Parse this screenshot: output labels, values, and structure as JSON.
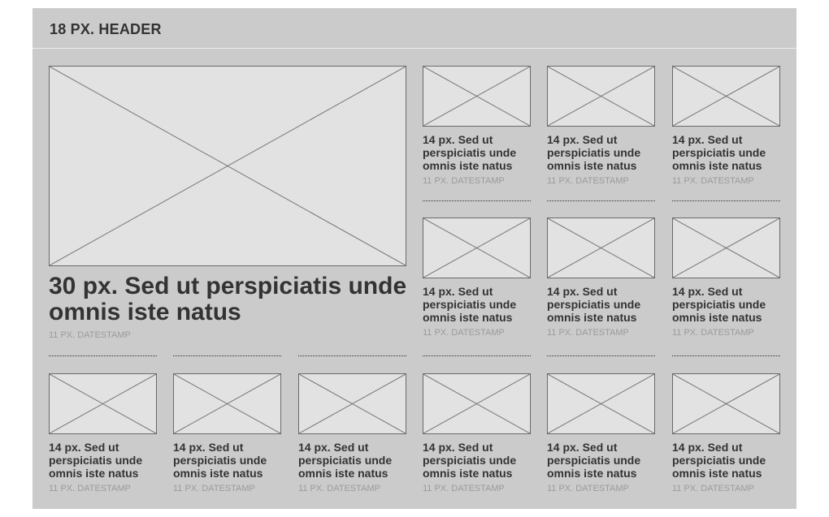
{
  "header": {
    "title": "18 PX. HEADER"
  },
  "hero": {
    "image_icon": "image-placeholder-icon",
    "title": "30 px. Sed ut perspiciatis unde omnis iste natus",
    "datestamp": "11 PX. DATESTAMP"
  },
  "grid_right": [
    {
      "title": "14 px. Sed ut perspiciatis unde omnis iste natus",
      "datestamp": "11 PX. DATESTAMP"
    },
    {
      "title": "14 px. Sed ut perspiciatis unde omnis iste natus",
      "datestamp": "11 PX. DATESTAMP"
    },
    {
      "title": "14 px. Sed ut perspiciatis unde omnis iste natus",
      "datestamp": "11 PX. DATESTAMP"
    },
    {
      "title": "14 px. Sed ut perspiciatis unde omnis iste natus",
      "datestamp": "11 PX. DATESTAMP"
    },
    {
      "title": "14 px. Sed ut perspiciatis unde omnis iste natus",
      "datestamp": "11 PX. DATESTAMP"
    },
    {
      "title": "14 px. Sed ut perspiciatis unde omnis iste natus",
      "datestamp": "11 PX. DATESTAMP"
    }
  ],
  "grid_bottom": [
    {
      "title": "14 px. Sed ut perspiciatis unde omnis iste natus",
      "datestamp": "11 PX. DATESTAMP"
    },
    {
      "title": "14 px. Sed ut perspiciatis unde omnis iste natus",
      "datestamp": "11 PX. DATESTAMP"
    },
    {
      "title": "14 px. Sed ut perspiciatis unde omnis iste natus",
      "datestamp": "11 PX. DATESTAMP"
    },
    {
      "title": "14 px. Sed ut perspiciatis unde omnis iste natus",
      "datestamp": "11 PX. DATESTAMP"
    },
    {
      "title": "14 px. Sed ut perspiciatis unde omnis iste natus",
      "datestamp": "11 PX. DATESTAMP"
    },
    {
      "title": "14 px. Sed ut perspiciatis unde omnis iste natus",
      "datestamp": "11 PX. DATESTAMP"
    }
  ],
  "colors": {
    "panel": "#cbcbcb",
    "placeholder": "#e2e2e2",
    "text": "#333333",
    "stamp": "#9b9b9b"
  }
}
